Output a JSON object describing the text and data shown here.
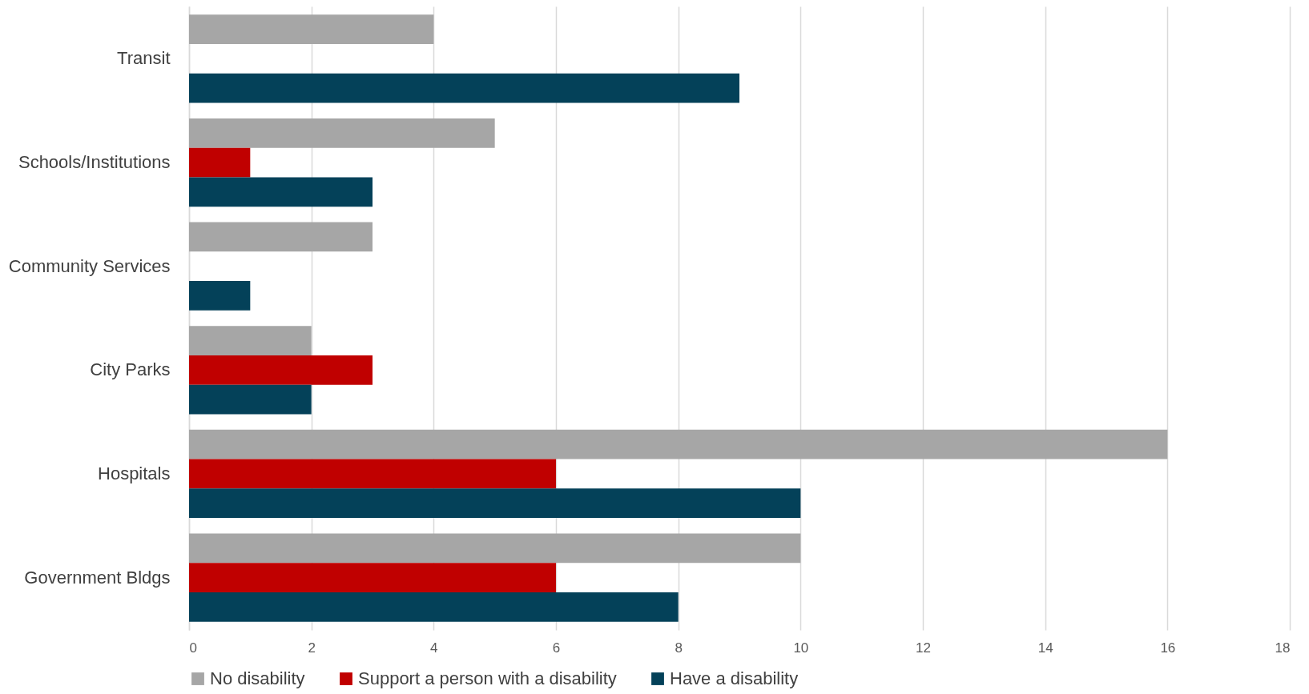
{
  "chart_data": {
    "type": "bar",
    "orientation": "horizontal",
    "categories": [
      "Transit",
      "Schools/Institutions",
      "Community Services",
      "City Parks",
      "Hospitals",
      "Government Bldgs"
    ],
    "series": [
      {
        "name": "No disability",
        "color": "#a6a6a6",
        "values": [
          4,
          5,
          3,
          2,
          16,
          10
        ]
      },
      {
        "name": "Support a person with a disability",
        "color": "#c00000",
        "values": [
          null,
          1,
          null,
          3,
          6,
          6
        ]
      },
      {
        "name": "Have a disability",
        "color": "#044159",
        "values": [
          9,
          3,
          1,
          2,
          10,
          8
        ]
      }
    ],
    "xlim": [
      0,
      18
    ],
    "xticks": [
      0,
      2,
      4,
      6,
      8,
      10,
      12,
      14,
      16,
      18
    ],
    "grid": "x",
    "legend": "bottom"
  }
}
